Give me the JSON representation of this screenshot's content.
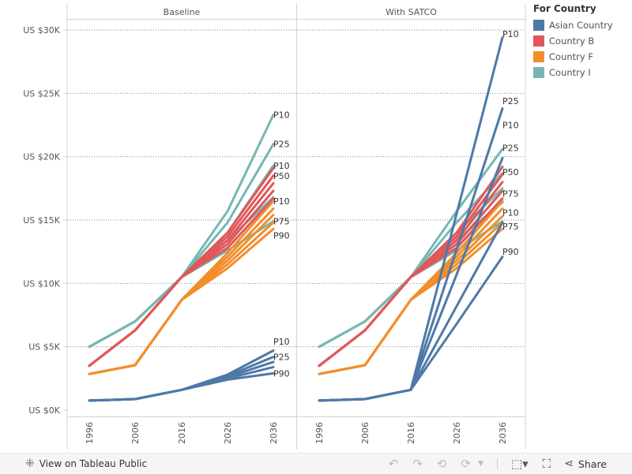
{
  "chart_data": {
    "type": "line",
    "y_axis": {
      "ylim": [
        0,
        30000
      ],
      "ticks": [
        {
          "value": 30000,
          "label": "US $30K"
        },
        {
          "value": 25000,
          "label": "US $25K"
        },
        {
          "value": 20000,
          "label": "US $20K"
        },
        {
          "value": 15000,
          "label": "US $15K"
        },
        {
          "value": 10000,
          "label": "US $10K"
        },
        {
          "value": 5000,
          "label": "US $5K"
        },
        {
          "value": 0,
          "label": "US $0K"
        }
      ],
      "grid": true
    },
    "x": [
      "1996",
      "2006",
      "2016",
      "2026",
      "2036"
    ],
    "legend": {
      "title": "For Country",
      "placement": "right",
      "entries": [
        {
          "name": "Asian Country",
          "color": "#4e79a7"
        },
        {
          "name": "Country B",
          "color": "#e15759"
        },
        {
          "name": "Country F",
          "color": "#f28e2b"
        },
        {
          "name": "Country I",
          "color": "#76b7b2"
        }
      ]
    },
    "panes": [
      {
        "title": "Baseline",
        "series": [
          {
            "country": "Country I",
            "percentile": "P10",
            "values": [
              5000,
              7000,
              10500,
              15700,
              23300
            ]
          },
          {
            "country": "Country I",
            "percentile": "P25",
            "values": [
              5000,
              7000,
              10500,
              14800,
              21000
            ]
          },
          {
            "country": "Country I",
            "percentile": "P50",
            "values": [
              5000,
              7000,
              10500,
              14000,
              19300
            ]
          },
          {
            "country": "Country I",
            "percentile": "P75",
            "values": [
              5000,
              7000,
              10500,
              13400,
              16800
            ]
          },
          {
            "country": "Country I",
            "percentile": "P90",
            "values": [
              5000,
              7000,
              10500,
              12600,
              14900
            ]
          },
          {
            "country": "Country B",
            "percentile": "P10",
            "values": [
              3500,
              6300,
              10500,
              14000,
              19100
            ]
          },
          {
            "country": "Country B",
            "percentile": "P25",
            "values": [
              3500,
              6300,
              10500,
              13700,
              18500
            ]
          },
          {
            "country": "Country B",
            "percentile": "P50",
            "values": [
              3500,
              6300,
              10500,
              13400,
              17900
            ]
          },
          {
            "country": "Country B",
            "percentile": "P75",
            "values": [
              3500,
              6300,
              10500,
              13100,
              17300
            ]
          },
          {
            "country": "Country B",
            "percentile": "P90",
            "values": [
              3500,
              6300,
              10500,
              12800,
              16700
            ]
          },
          {
            "country": "Country F",
            "percentile": "P10",
            "values": [
              2850,
              3550,
              8700,
              12400,
              16500
            ]
          },
          {
            "country": "Country F",
            "percentile": "P25",
            "values": [
              2850,
              3550,
              8700,
              12100,
              15900
            ]
          },
          {
            "country": "Country F",
            "percentile": "P50",
            "values": [
              2850,
              3550,
              8700,
              11800,
              15400
            ]
          },
          {
            "country": "Country F",
            "percentile": "P75",
            "values": [
              2850,
              3550,
              8700,
              11500,
              14800
            ]
          },
          {
            "country": "Country F",
            "percentile": "P90",
            "values": [
              2850,
              3550,
              8700,
              11200,
              14300
            ]
          },
          {
            "country": "Asian Country",
            "percentile": "P10",
            "values": [
              750,
              870,
              1600,
              2800,
              4700
            ]
          },
          {
            "country": "Asian Country",
            "percentile": "P25",
            "values": [
              750,
              870,
              1600,
              2700,
              4200
            ]
          },
          {
            "country": "Asian Country",
            "percentile": "P50",
            "values": [
              750,
              870,
              1600,
              2600,
              3800
            ]
          },
          {
            "country": "Asian Country",
            "percentile": "P75",
            "values": [
              750,
              870,
              1600,
              2500,
              3400
            ]
          },
          {
            "country": "Asian Country",
            "percentile": "P90",
            "values": [
              750,
              870,
              1600,
              2400,
              2900
            ]
          }
        ],
        "end_labels": [
          {
            "text": "P10",
            "value": 23300
          },
          {
            "text": "P25",
            "value": 21000
          },
          {
            "text": "P10",
            "value": 19300
          },
          {
            "text": "P50",
            "value": 18500
          },
          {
            "text": "P10",
            "value": 16500
          },
          {
            "text": "P75",
            "value": 14900
          },
          {
            "text": "P90",
            "value": 13800
          },
          {
            "text": "P10",
            "value": 5400
          },
          {
            "text": "P25",
            "value": 4200
          },
          {
            "text": "P90",
            "value": 2900
          }
        ]
      },
      {
        "title": "With SATCO",
        "series": [
          {
            "country": "Country I",
            "percentile": "P10",
            "values": [
              5000,
              7000,
              10500,
              15700,
              20600
            ]
          },
          {
            "country": "Country I",
            "percentile": "P25",
            "values": [
              5000,
              7000,
              10500,
              14800,
              18700
            ]
          },
          {
            "country": "Country I",
            "percentile": "P50",
            "values": [
              5000,
              7000,
              10500,
              14000,
              17500
            ]
          },
          {
            "country": "Country I",
            "percentile": "P75",
            "values": [
              5000,
              7000,
              10500,
              13400,
              16400
            ]
          },
          {
            "country": "Country I",
            "percentile": "P90",
            "values": [
              5000,
              7000,
              10500,
              12600,
              14900
            ]
          },
          {
            "country": "Country B",
            "percentile": "P10",
            "values": [
              3500,
              6300,
              10500,
              14000,
              19200
            ]
          },
          {
            "country": "Country B",
            "percentile": "P25",
            "values": [
              3500,
              6300,
              10500,
              13700,
              18600
            ]
          },
          {
            "country": "Country B",
            "percentile": "P50",
            "values": [
              3500,
              6300,
              10500,
              13400,
              18000
            ]
          },
          {
            "country": "Country B",
            "percentile": "P75",
            "values": [
              3500,
              6300,
              10500,
              13100,
              17300
            ]
          },
          {
            "country": "Country B",
            "percentile": "P90",
            "values": [
              3500,
              6300,
              10500,
              12800,
              16700
            ]
          },
          {
            "country": "Country F",
            "percentile": "P10",
            "values": [
              2850,
              3550,
              8700,
              12400,
              16500
            ]
          },
          {
            "country": "Country F",
            "percentile": "P25",
            "values": [
              2850,
              3550,
              8700,
              12100,
              15900
            ]
          },
          {
            "country": "Country F",
            "percentile": "P50",
            "values": [
              2850,
              3550,
              8700,
              11800,
              15300
            ]
          },
          {
            "country": "Country F",
            "percentile": "P75",
            "values": [
              2850,
              3550,
              8700,
              11500,
              14800
            ]
          },
          {
            "country": "Country F",
            "percentile": "P90",
            "values": [
              2850,
              3550,
              8700,
              11200,
              14300
            ]
          },
          {
            "country": "Asian Country",
            "percentile": "P10",
            "values": [
              750,
              870,
              1600,
              15500,
              29400
            ]
          },
          {
            "country": "Asian Country",
            "percentile": "P25",
            "values": [
              750,
              870,
              1600,
              12700,
              23800
            ]
          },
          {
            "country": "Asian Country",
            "percentile": "P50",
            "values": [
              750,
              870,
              1600,
              10700,
              19900
            ]
          },
          {
            "country": "Asian Country",
            "percentile": "P75",
            "values": [
              750,
              870,
              1600,
              8200,
              14800
            ]
          },
          {
            "country": "Asian Country",
            "percentile": "P90",
            "values": [
              750,
              870,
              1600,
              6800,
              12100
            ]
          }
        ],
        "end_labels": [
          {
            "text": "P10",
            "value": 29700
          },
          {
            "text": "P25",
            "value": 24400
          },
          {
            "text": "P10",
            "value": 22500
          },
          {
            "text": "P25",
            "value": 20700
          },
          {
            "text": "P50",
            "value": 18800
          },
          {
            "text": "P75",
            "value": 17100
          },
          {
            "text": "P10",
            "value": 15600
          },
          {
            "text": "P75",
            "value": 14500
          },
          {
            "text": "P90",
            "value": 12500
          }
        ]
      }
    ]
  },
  "toolbar": {
    "view_on_tableau": "View on Tableau Public",
    "share": "Share",
    "icons": [
      "tableau-logo-icon",
      "undo-icon",
      "redo-icon",
      "revert-icon",
      "refresh-icon",
      "dropdown-icon",
      "download-icon",
      "fullscreen-icon",
      "share-icon"
    ]
  }
}
